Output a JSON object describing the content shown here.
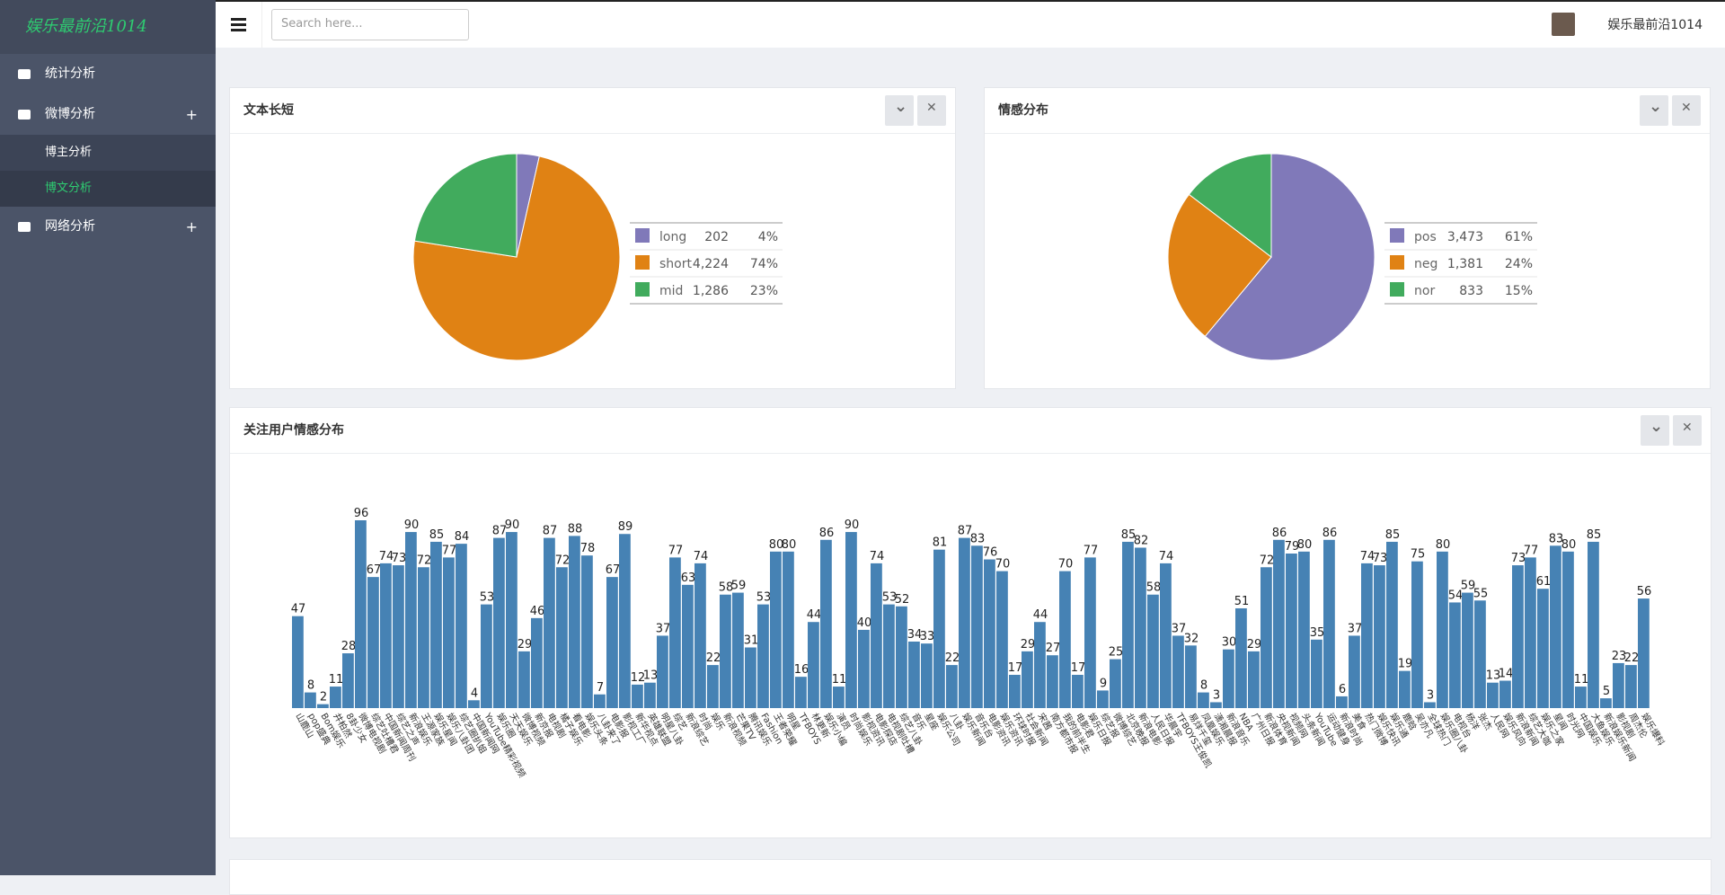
{
  "sidebar": {
    "logo": "娱乐最前沿1014",
    "menu": [
      {
        "label": "统计分析"
      },
      {
        "label": "微博分析",
        "expand": "+"
      },
      {
        "label": "博主分析"
      },
      {
        "label": "博文分析"
      },
      {
        "label": "网络分析",
        "expand": "+"
      }
    ]
  },
  "header": {
    "search_placeholder": "Search here...",
    "user": "娱乐最前沿1014"
  },
  "chart_data": [
    {
      "type": "pie",
      "title": "文本长短",
      "categories": [
        "long",
        "short",
        "mid"
      ],
      "values": [
        202,
        4224,
        1286
      ],
      "value_labels": [
        "202",
        "4,224",
        "1,286"
      ],
      "percents": [
        4,
        74,
        23
      ],
      "percent_labels": [
        "4%",
        "74%",
        "23%"
      ],
      "colors": [
        "#8079b9",
        "#e08214",
        "#41ab5d"
      ]
    },
    {
      "type": "pie",
      "title": "情感分布",
      "categories": [
        "pos",
        "neg",
        "nor"
      ],
      "values": [
        3473,
        1381,
        833
      ],
      "value_labels": [
        "3,473",
        "1,381",
        "833"
      ],
      "percents": [
        61,
        24,
        15
      ],
      "percent_labels": [
        "61%",
        "24%",
        "15%"
      ],
      "colors": [
        "#8079b9",
        "#e08214",
        "#41ab5d"
      ]
    },
    {
      "type": "bar",
      "title": "关注用户情感分布",
      "color": "#4682b4",
      "categories": [
        "山鹿山",
        "pop盛典",
        "Bom娱乐",
        "井柏然",
        "8卦少女",
        "微博电视剧",
        "综艺吐槽君",
        "中国新闻周刊",
        "综艺之声",
        "新浪娱乐",
        "王源家族",
        "娱乐星闻",
        "娱乐八卦团",
        "综艺圈扒姐",
        "中国新闻网",
        "YouTube精彩视频",
        "娱乐圈",
        "天天娱乐",
        "微博视频",
        "新京报",
        "电视剧",
        "橘子娱乐",
        "看电影",
        "娱乐头条",
        "八卦来了",
        "电影报",
        "影视工厂",
        "新华视点",
        "英雄联盟",
        "明星八卦",
        "综艺",
        "新浪综艺",
        "时尚",
        "娱乐",
        "新浪视频",
        "芒果TV",
        "腾讯娱乐",
        "Fashion",
        "王者荣耀",
        "明星",
        "TFBOYS",
        "林更新",
        "娱乐小编",
        "演员",
        "时尚娱乐",
        "影视资讯",
        "电影探店",
        "电视剧吐槽",
        "综艺八卦",
        "音乐",
        "星座",
        "娱乐公司",
        "八卦",
        "娱乐新闻",
        "音乐台",
        "电影资讯",
        "娱乐资讯",
        "环球时报",
        "社会新闻",
        "宋茜",
        "南方都市报",
        "我的前半生",
        "电影君",
        "娱乐日报",
        "综艺报",
        "微博综艺",
        "北京晚报",
        "新浪电影",
        "人民日报",
        "华晨宇",
        "TFBOYS王俊凯",
        "易烊千玺",
        "凤凰娱乐",
        "潇湘晨报",
        "新浪音乐",
        "NBA",
        "广州日报",
        "新浪体育",
        "央视新闻",
        "视频网",
        "头条新闻",
        "YouTube",
        "运动健身",
        "新浪时尚",
        "美食",
        "热门微博",
        "娱乐快讯",
        "娱乐通",
        "鹿晗",
        "吴亦凡",
        "全球热门",
        "娱乐圈八卦",
        "电视台",
        "杨洋",
        "张杰",
        "人民网",
        "娱乐风向",
        "新浪新闻",
        "综艺大咖",
        "娱乐之家",
        "星闻",
        "时光网",
        "中国娱乐",
        "大鱼娱乐",
        "新浪娱乐新闻",
        "影视剧",
        "周杰伦",
        "娱乐爆料"
      ],
      "values": [
        47,
        8,
        2,
        11,
        28,
        96,
        67,
        74,
        73,
        90,
        72,
        85,
        77,
        84,
        4,
        53,
        87,
        90,
        29,
        46,
        87,
        72,
        88,
        78,
        7,
        67,
        89,
        12,
        13,
        37,
        77,
        63,
        74,
        22,
        58,
        59,
        31,
        53,
        80,
        80,
        16,
        44,
        86,
        11,
        90,
        40,
        74,
        53,
        52,
        34,
        33,
        81,
        22,
        87,
        83,
        76,
        70,
        17,
        29,
        44,
        27,
        70,
        17,
        77,
        9,
        25,
        85,
        82,
        58,
        74,
        37,
        32,
        8,
        3,
        30,
        51,
        29,
        72,
        86,
        79,
        80,
        35,
        86,
        6,
        37,
        74,
        73,
        85,
        19,
        75,
        3,
        80,
        54,
        59,
        55,
        13,
        14,
        73,
        77,
        61,
        83,
        80,
        11,
        85,
        5,
        23,
        22,
        56
      ]
    }
  ]
}
